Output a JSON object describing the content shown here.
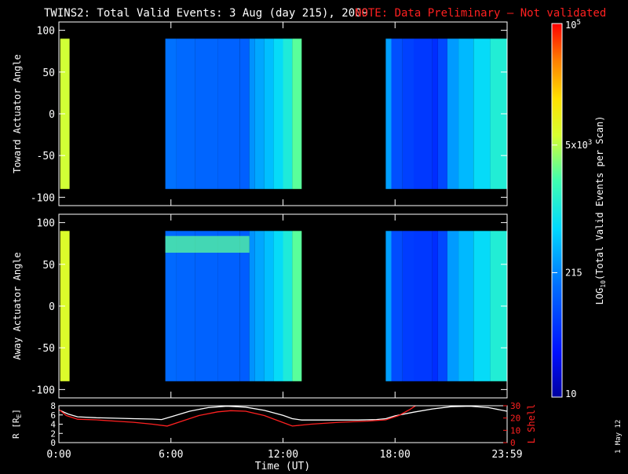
{
  "title": "TWINS2: Total Valid Events:  3 Aug (day 215), 2009",
  "note": "NOTE: Data Preliminary — Not validated",
  "footer_date": "1 May 12",
  "colors": {
    "background": "#000000",
    "frame": "#ffffff",
    "note": "#ff2020",
    "lshell": "#ff2020",
    "radius": "#ffffff"
  },
  "colorbar": {
    "label": "LOG10(Total Valid Events per Scan)",
    "label_main": "LOG",
    "label_sub": "10",
    "label_rest": "(Total Valid Events per Scan)",
    "scale": "log",
    "range": [
      10,
      100000
    ],
    "ticks": [
      {
        "value": 10,
        "label": "10"
      },
      {
        "value": 215,
        "label": "215"
      },
      {
        "value": 5000,
        "label": "5x10",
        "sup": "3"
      },
      {
        "value": 100000,
        "label": "10",
        "sup": "5"
      }
    ]
  },
  "chart_data": [
    {
      "type": "heatmap",
      "ylabel": "Toward Actuator Angle",
      "xlim": [
        0,
        24
      ],
      "ylim": [
        -110,
        110
      ],
      "yticks": [
        "100",
        "50",
        "0",
        "-50",
        "-100"
      ],
      "ytick_values": [
        100,
        50,
        0,
        -50,
        -100
      ],
      "angle_range": [
        -90,
        90
      ],
      "segments": [
        {
          "start": 0.0,
          "end": 0.0,
          "cols": [
            {
              "t": 0.07,
              "w": 0.5,
              "value": 6000
            }
          ]
        },
        {
          "start": 5.7,
          "end": 13.0,
          "cols": [
            {
              "t": 5.7,
              "w": 0.6,
              "value": 160
            },
            {
              "t": 6.3,
              "w": 1.0,
              "value": 140
            },
            {
              "t": 7.3,
              "w": 1.2,
              "value": 130
            },
            {
              "t": 8.5,
              "w": 1.2,
              "value": 125
            },
            {
              "t": 9.7,
              "w": 0.5,
              "value": 120
            },
            {
              "t": 10.2,
              "w": 0.3,
              "value": 250
            },
            {
              "t": 10.5,
              "w": 0.5,
              "value": 330
            },
            {
              "t": 11.0,
              "w": 0.5,
              "value": 450
            },
            {
              "t": 11.5,
              "w": 0.5,
              "value": 700
            },
            {
              "t": 12.0,
              "w": 0.5,
              "value": 1100
            },
            {
              "t": 12.5,
              "w": 0.5,
              "value": 2500
            }
          ]
        },
        {
          "start": 17.5,
          "end": 23.99,
          "cols": [
            {
              "t": 17.5,
              "w": 0.3,
              "value": 300
            },
            {
              "t": 17.8,
              "w": 0.6,
              "value": 90
            },
            {
              "t": 18.4,
              "w": 0.6,
              "value": 70
            },
            {
              "t": 19.0,
              "w": 1.0,
              "value": 60
            },
            {
              "t": 20.0,
              "w": 0.3,
              "value": 50
            },
            {
              "t": 20.3,
              "w": 0.5,
              "value": 80
            },
            {
              "t": 20.8,
              "w": 0.6,
              "value": 280
            },
            {
              "t": 21.4,
              "w": 0.8,
              "value": 420
            },
            {
              "t": 22.2,
              "w": 0.9,
              "value": 700
            },
            {
              "t": 23.1,
              "w": 0.89,
              "value": 1200
            }
          ]
        }
      ]
    },
    {
      "type": "heatmap",
      "ylabel": "Away Actuator Angle",
      "xlim": [
        0,
        24
      ],
      "ylim": [
        -110,
        110
      ],
      "yticks": [
        "100",
        "50",
        "0",
        "-50",
        "-100"
      ],
      "ytick_values": [
        100,
        50,
        0,
        -50,
        -100
      ],
      "angle_range": [
        -90,
        90
      ],
      "segments": [
        {
          "start": 0.0,
          "end": 0.0,
          "cols": [
            {
              "t": 0.07,
              "w": 0.5,
              "value": 7000
            }
          ]
        },
        {
          "start": 5.7,
          "end": 13.0,
          "cols": [
            {
              "t": 5.7,
              "w": 0.6,
              "value": 140
            },
            {
              "t": 6.3,
              "w": 1.0,
              "value": 130
            },
            {
              "t": 7.3,
              "w": 1.2,
              "value": 125
            },
            {
              "t": 8.5,
              "w": 1.2,
              "value": 120
            },
            {
              "t": 9.7,
              "w": 0.5,
              "value": 115
            },
            {
              "t": 10.2,
              "w": 0.3,
              "value": 250
            },
            {
              "t": 10.5,
              "w": 0.5,
              "value": 330
            },
            {
              "t": 11.0,
              "w": 0.5,
              "value": 450
            },
            {
              "t": 11.5,
              "w": 0.5,
              "value": 700
            },
            {
              "t": 12.0,
              "w": 0.5,
              "value": 1100
            },
            {
              "t": 12.5,
              "w": 0.5,
              "value": 2500
            }
          ]
        },
        {
          "start": 17.5,
          "end": 23.99,
          "cols": [
            {
              "t": 17.5,
              "w": 0.3,
              "value": 300
            },
            {
              "t": 17.8,
              "w": 0.6,
              "value": 85
            },
            {
              "t": 18.4,
              "w": 0.6,
              "value": 65
            },
            {
              "t": 19.0,
              "w": 1.0,
              "value": 60
            },
            {
              "t": 20.0,
              "w": 0.3,
              "value": 50
            },
            {
              "t": 20.3,
              "w": 0.5,
              "value": 80
            },
            {
              "t": 20.8,
              "w": 0.6,
              "value": 280
            },
            {
              "t": 21.4,
              "w": 0.8,
              "value": 420
            },
            {
              "t": 22.2,
              "w": 0.9,
              "value": 700
            },
            {
              "t": 23.1,
              "w": 0.89,
              "value": 1200
            }
          ]
        }
      ],
      "band": {
        "start": 5.7,
        "end": 10.2,
        "angle_low": 64,
        "angle_high": 84,
        "value": 2500
      }
    },
    {
      "type": "line",
      "xlabel": "Time (UT)",
      "xlim": [
        0,
        24
      ],
      "xticks": [
        "0:00",
        "6:00",
        "12:00",
        "18:00",
        "23:59"
      ],
      "xtick_values": [
        0,
        6,
        12,
        18,
        24
      ],
      "ylabel": "R [R",
      "ylabel_sub": "E",
      "ylabel_close": "]",
      "ylim": [
        0,
        8
      ],
      "yticks": [
        "8",
        "6",
        "4",
        "2",
        "0"
      ],
      "ytick_values": [
        8,
        6,
        4,
        2,
        0
      ],
      "y2label": "L Shell",
      "y2lim": [
        0,
        30
      ],
      "y2ticks": [
        "30",
        "20",
        "10",
        "0"
      ],
      "y2tick_values": [
        30,
        20,
        10,
        0
      ],
      "series": [
        {
          "axis": "left",
          "x": [
            0,
            0.5,
            1,
            2,
            3,
            4,
            5,
            5.5,
            6,
            7,
            8,
            9,
            10,
            11,
            12,
            12.5,
            13,
            14,
            15,
            16,
            17,
            17.5,
            18,
            19,
            20,
            21,
            22,
            23,
            24
          ],
          "y": [
            7.1,
            6.2,
            5.6,
            5.4,
            5.3,
            5.2,
            5.1,
            5.0,
            5.6,
            6.8,
            7.6,
            7.9,
            7.7,
            7.0,
            5.9,
            5.2,
            4.9,
            4.9,
            4.9,
            4.9,
            5.0,
            5.2,
            5.8,
            6.6,
            7.3,
            7.8,
            7.9,
            7.6,
            6.8
          ]
        },
        {
          "axis": "right",
          "x": [
            0,
            0.4,
            1,
            2,
            3,
            4,
            5,
            5.8,
            6.5,
            7.5,
            8.5,
            9.2,
            10,
            11,
            12.5,
            13.5,
            15,
            16.5,
            17.5,
            18.2,
            18.8,
            19.2
          ],
          "y": [
            27,
            22,
            19,
            18.5,
            17.5,
            16.5,
            15,
            13.5,
            17,
            22,
            25,
            26,
            25.5,
            22,
            13.5,
            15,
            16.5,
            17.5,
            18.5,
            22,
            27,
            31
          ]
        }
      ]
    }
  ]
}
